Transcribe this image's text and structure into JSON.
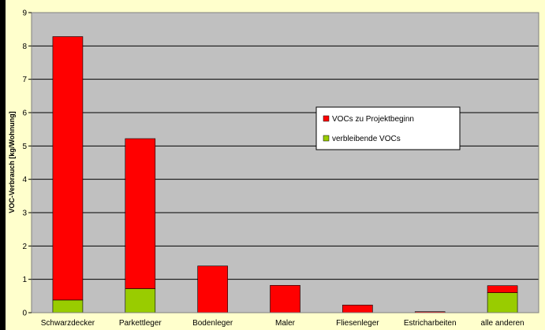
{
  "chart_data": {
    "type": "bar",
    "stacked": true,
    "categories": [
      "Schwarzdecker",
      "Parkettleger",
      "Bodenleger",
      "Maler",
      "Fliesenleger",
      "Estricharbeiten",
      "alle anderen"
    ],
    "series": [
      {
        "name": "verbleibende VOCs",
        "color": "#99cc00",
        "values": [
          0.38,
          0.72,
          0.0,
          0.0,
          0.0,
          0.0,
          0.6
        ]
      },
      {
        "name": "VOCs zu Projektbeginn",
        "color": "#ff0000",
        "values": [
          7.9,
          4.5,
          1.4,
          0.82,
          0.23,
          0.03,
          0.21
        ]
      }
    ],
    "legend_order": [
      "VOCs zu Projektbeginn",
      "verbleibende VOCs"
    ],
    "ylabel": "VOC-Verbrauch [kg/Wohnung]",
    "xlabel": "",
    "title": "",
    "ylim": [
      0,
      9
    ],
    "yticks": [
      "0",
      "1",
      "2",
      "3",
      "4",
      "5",
      "6",
      "7",
      "8",
      "9"
    ],
    "grid": true,
    "legend_position": "center-right",
    "colors": {
      "background": "#ffffcc",
      "plot_area": "#c0c0c0",
      "frame": "#000000"
    }
  }
}
